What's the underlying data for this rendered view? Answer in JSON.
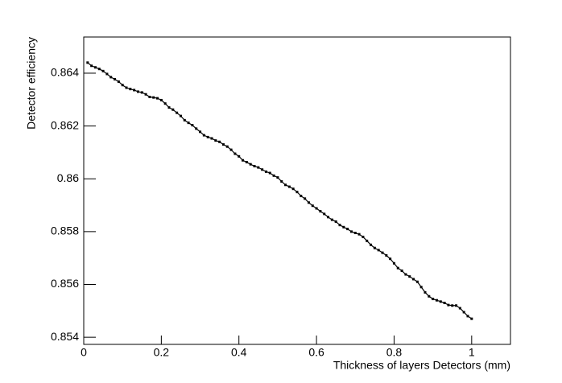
{
  "chart_data": {
    "type": "line",
    "x_label": "Thickness of layers Detectors (mm)",
    "y_label": "Detector efficiency",
    "x": [
      0.01,
      0.02,
      0.03,
      0.04,
      0.05,
      0.06,
      0.07,
      0.08,
      0.09,
      0.1,
      0.11,
      0.12,
      0.13,
      0.14,
      0.15,
      0.16,
      0.17,
      0.18,
      0.19,
      0.2,
      0.21,
      0.22,
      0.23,
      0.24,
      0.25,
      0.26,
      0.27,
      0.28,
      0.29,
      0.3,
      0.31,
      0.32,
      0.33,
      0.34,
      0.35,
      0.36,
      0.37,
      0.38,
      0.39,
      0.4,
      0.41,
      0.42,
      0.43,
      0.44,
      0.45,
      0.46,
      0.47,
      0.48,
      0.49,
      0.5,
      0.51,
      0.52,
      0.53,
      0.54,
      0.55,
      0.56,
      0.57,
      0.58,
      0.59,
      0.6,
      0.61,
      0.62,
      0.63,
      0.64,
      0.65,
      0.66,
      0.67,
      0.68,
      0.69,
      0.7,
      0.71,
      0.72,
      0.73,
      0.74,
      0.75,
      0.76,
      0.77,
      0.78,
      0.79,
      0.8,
      0.81,
      0.82,
      0.83,
      0.84,
      0.85,
      0.86,
      0.87,
      0.88,
      0.89,
      0.9,
      0.91,
      0.92,
      0.93,
      0.94,
      0.95,
      0.96,
      0.97,
      0.98,
      0.99,
      1.0
    ],
    "series": [
      {
        "color": "#000000",
        "values": [
          0.8644,
          0.86428,
          0.86422,
          0.86416,
          0.86408,
          0.86397,
          0.86385,
          0.86377,
          0.86368,
          0.86355,
          0.86345,
          0.8634,
          0.86336,
          0.8633,
          0.86327,
          0.8632,
          0.8631,
          0.86308,
          0.86305,
          0.86298,
          0.86285,
          0.8627,
          0.86262,
          0.8625,
          0.86238,
          0.86222,
          0.86212,
          0.86203,
          0.8619,
          0.86178,
          0.86165,
          0.86158,
          0.86153,
          0.86145,
          0.8614,
          0.8613,
          0.86122,
          0.8611,
          0.86095,
          0.86085,
          0.8607,
          0.86063,
          0.86055,
          0.86048,
          0.86043,
          0.86035,
          0.86027,
          0.86022,
          0.86012,
          0.86005,
          0.8599,
          0.85977,
          0.8597,
          0.85962,
          0.8595,
          0.85935,
          0.85925,
          0.8591,
          0.85898,
          0.85888,
          0.85877,
          0.85867,
          0.85855,
          0.85845,
          0.85838,
          0.85825,
          0.85817,
          0.8581,
          0.858,
          0.85795,
          0.8579,
          0.8578,
          0.85765,
          0.8575,
          0.85738,
          0.8573,
          0.8572,
          0.8571,
          0.85697,
          0.8568,
          0.85662,
          0.85652,
          0.85638,
          0.8563,
          0.8562,
          0.8561,
          0.8559,
          0.8557,
          0.85555,
          0.85545,
          0.8554,
          0.85535,
          0.8553,
          0.85522,
          0.8552,
          0.8552,
          0.8551,
          0.85495,
          0.8548,
          0.8547
        ]
      }
    ],
    "xlim": [
      0,
      1.1
    ],
    "xticks": [
      0,
      0.2,
      0.4,
      0.6,
      0.8,
      1
    ],
    "ylim": [
      0.85373,
      0.86537
    ],
    "yticks": [
      0.854,
      0.856,
      0.858,
      0.86,
      0.862,
      0.864
    ]
  }
}
